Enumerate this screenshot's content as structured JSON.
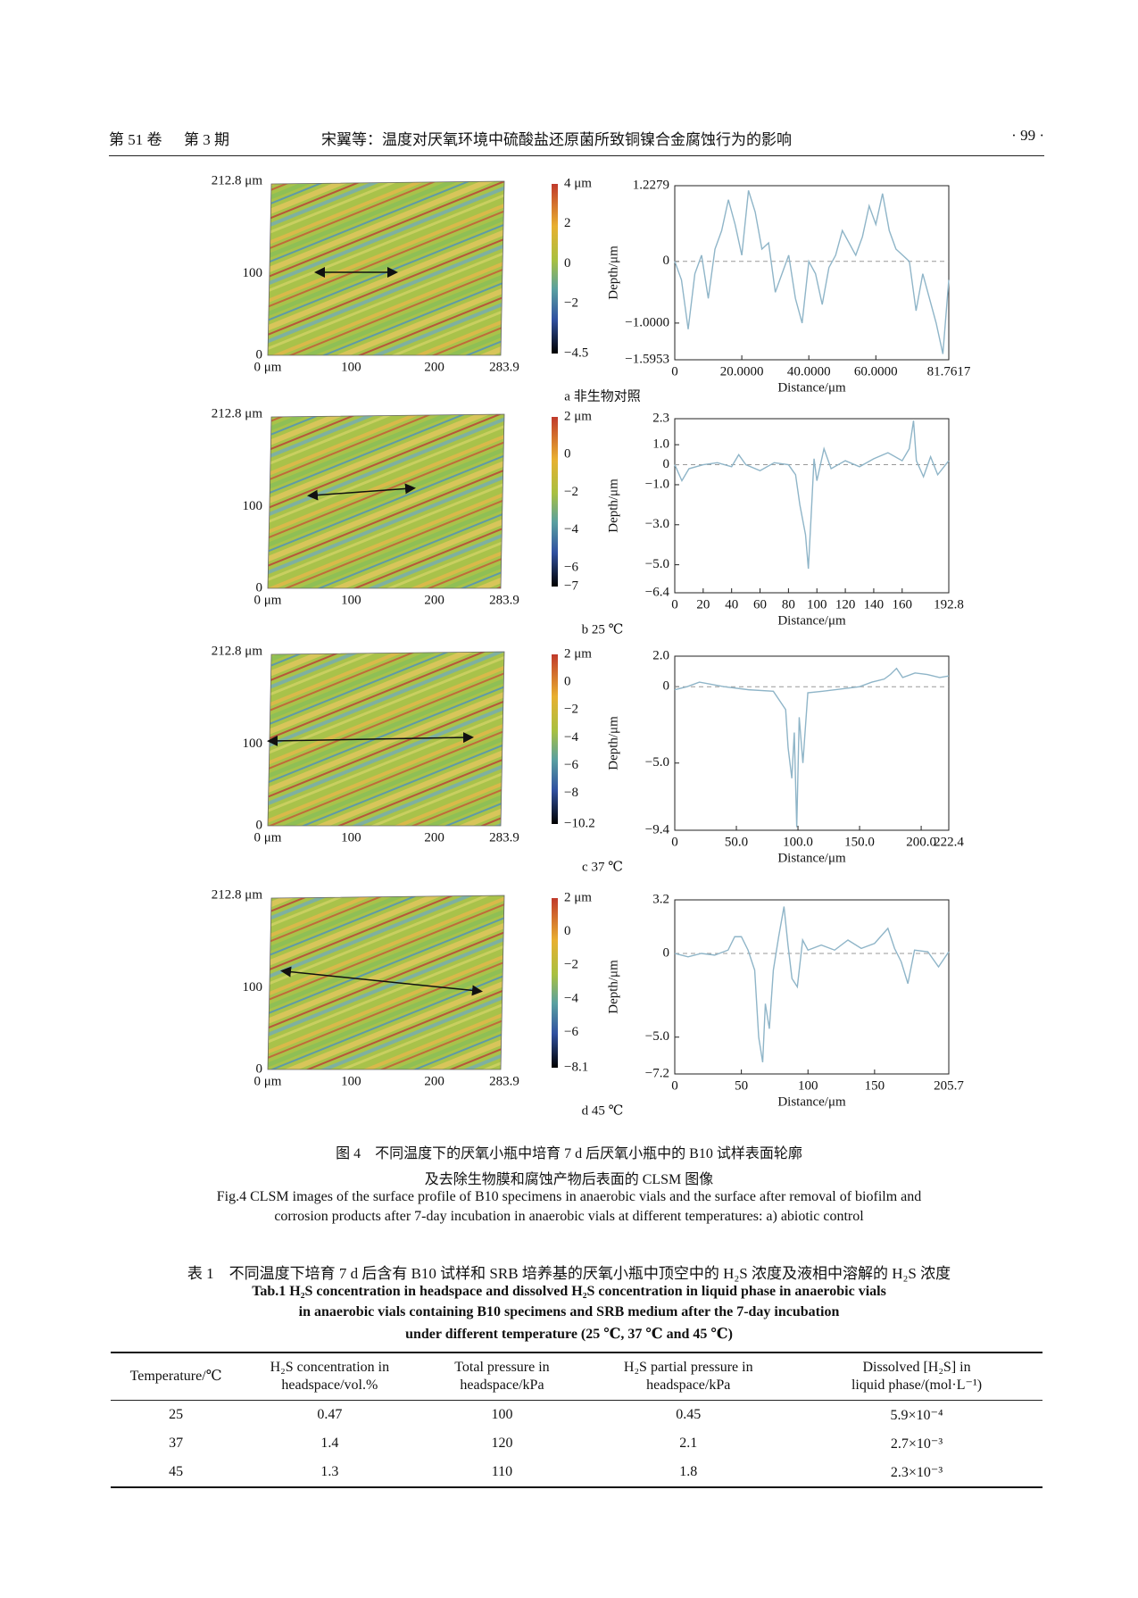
{
  "header": {
    "volume": "第 51 卷",
    "issue": "第 3 期",
    "title": "宋翼等：温度对厌氧环境中硫酸盐还原菌所致铜镍合金腐蚀行为的影响",
    "page": "· 99 ·"
  },
  "figure": {
    "panels": [
      {
        "label": "a 非生物对照",
        "map": {
          "yticks": [
            {
              "value": 212.8,
              "label": "212.8 μm"
            },
            100,
            0
          ],
          "xticks": [
            {
              "value": 0,
              "label": "0 μm"
            },
            100,
            200,
            283.9
          ]
        },
        "colorbar": {
          "ticks": [
            {
              "value": 4,
              "label": "4 μm"
            },
            2,
            0,
            {
              "value": -2,
              "label": "−2"
            },
            {
              "value": -4.5,
              "label": "−4.5"
            }
          ]
        },
        "profile": {
          "type": "line",
          "ylabel": "Depth/μm",
          "xlabel": "Distance/μm",
          "color": "#8fb5c8",
          "xlim": [
            0,
            81.7617
          ],
          "ylim": [
            -1.5953,
            1.2279
          ],
          "xticks": [
            0,
            {
              "value": 20,
              "label": "20.0000"
            },
            {
              "value": 40,
              "label": "40.0000"
            },
            {
              "value": 60,
              "label": "60.0000"
            },
            81.7617
          ],
          "yticks": [
            1.2279,
            0,
            {
              "value": -1,
              "label": "−1.0000"
            },
            {
              "value": -1.5953,
              "label": "−1.5953"
            }
          ],
          "x": [
            0,
            2,
            4,
            6,
            8,
            10,
            12,
            14,
            16,
            18,
            20,
            22,
            24,
            26,
            28,
            30,
            32,
            34,
            36,
            38,
            40,
            42,
            44,
            46,
            48,
            50,
            52,
            54,
            56,
            58,
            60,
            62,
            64,
            66,
            68,
            70,
            72,
            74,
            76,
            78,
            80,
            81.7617
          ],
          "values": [
            0,
            -0.3,
            -1.1,
            -0.2,
            0.1,
            -0.6,
            0.2,
            0.5,
            1.0,
            0.6,
            0.1,
            1.15,
            0.8,
            0.2,
            0.3,
            -0.5,
            -0.2,
            0.1,
            -0.6,
            -1.0,
            0.0,
            -0.2,
            -0.7,
            -0.1,
            0.1,
            0.5,
            0.3,
            0.1,
            0.4,
            0.9,
            0.6,
            1.1,
            0.5,
            0.2,
            0.1,
            0.0,
            -0.8,
            -0.2,
            -0.6,
            -1.0,
            -1.5,
            -0.3
          ]
        }
      },
      {
        "label": "b 25 ℃",
        "map": {
          "yticks": [
            {
              "value": 212.8,
              "label": "212.8 μm"
            },
            100,
            0
          ],
          "xticks": [
            {
              "value": 0,
              "label": "0 μm"
            },
            100,
            200,
            283.9
          ]
        },
        "colorbar": {
          "ticks": [
            {
              "value": 2,
              "label": "2 μm"
            },
            0,
            {
              "value": -2,
              "label": "−2"
            },
            {
              "value": -4,
              "label": "−4"
            },
            {
              "value": -6,
              "label": "−6"
            },
            {
              "value": -7,
              "label": "−7"
            }
          ]
        },
        "profile": {
          "type": "line",
          "ylabel": "Depth/μm",
          "xlabel": "Distance/μm",
          "color": "#8fb5c8",
          "xlim": [
            0,
            192.8
          ],
          "ylim": [
            -6.4,
            2.3
          ],
          "xticks": [
            0,
            20,
            40,
            60,
            80,
            100,
            120,
            140,
            160,
            192.8
          ],
          "yticks": [
            2.3,
            {
              "value": 1,
              "label": "1.0"
            },
            0,
            {
              "value": -1,
              "label": "−1.0"
            },
            {
              "value": -3,
              "label": "−3.0"
            },
            {
              "value": -5,
              "label": "−5.0"
            },
            {
              "value": -6.4,
              "label": "−6.4"
            }
          ],
          "x": [
            0,
            5,
            10,
            20,
            30,
            40,
            45,
            50,
            60,
            70,
            80,
            85,
            88,
            92,
            94,
            96,
            98,
            100,
            105,
            110,
            120,
            130,
            140,
            150,
            160,
            165,
            168,
            170,
            175,
            180,
            185,
            192.8
          ],
          "values": [
            0,
            -0.8,
            -0.2,
            0,
            0.1,
            -0.1,
            0.5,
            0,
            -0.3,
            0.1,
            0,
            -0.5,
            -2,
            -3.5,
            -5.2,
            -2.5,
            0.3,
            -0.8,
            0.8,
            -0.2,
            0.2,
            -0.1,
            0.3,
            0.6,
            0.2,
            0.8,
            2.2,
            0.2,
            -0.6,
            0.4,
            -0.5,
            0.2
          ]
        }
      },
      {
        "label": "c 37 ℃",
        "map": {
          "yticks": [
            {
              "value": 212.8,
              "label": "212.8 μm"
            },
            100,
            0
          ],
          "xticks": [
            {
              "value": 0,
              "label": "0 μm"
            },
            100,
            200,
            283.9
          ]
        },
        "colorbar": {
          "ticks": [
            {
              "value": 2,
              "label": "2 μm"
            },
            0,
            {
              "value": -2,
              "label": "−2"
            },
            {
              "value": -4,
              "label": "−4"
            },
            {
              "value": -6,
              "label": "−6"
            },
            {
              "value": -8,
              "label": "−8"
            },
            {
              "value": -10.2,
              "label": "−10.2"
            }
          ]
        },
        "profile": {
          "type": "line",
          "ylabel": "Depth/μm",
          "xlabel": "Distance/μm",
          "color": "#8fb5c8",
          "xlim": [
            0,
            222.4
          ],
          "ylim": [
            -9.4,
            2.0
          ],
          "xticks": [
            0,
            {
              "value": 50,
              "label": "50.0"
            },
            {
              "value": 100,
              "label": "100.0"
            },
            {
              "value": 150,
              "label": "150.0"
            },
            {
              "value": 200,
              "label": "200.0"
            },
            222.4
          ],
          "yticks": [
            {
              "value": 2,
              "label": "2.0"
            },
            0,
            {
              "value": -5,
              "label": "−5.0"
            },
            {
              "value": -9.4,
              "label": "−9.4"
            }
          ],
          "x": [
            0,
            10,
            20,
            40,
            60,
            80,
            90,
            92,
            95,
            97,
            99,
            101,
            104,
            108,
            120,
            140,
            150,
            160,
            170,
            175,
            180,
            185,
            195,
            205,
            215,
            222.4
          ],
          "values": [
            -0.2,
            0,
            0.3,
            0,
            -0.2,
            -0.3,
            -1.5,
            -4,
            -6,
            -3,
            -9.2,
            -2,
            -5,
            -0.4,
            -0.3,
            -0.1,
            0,
            0.3,
            0.5,
            0.8,
            1.2,
            0.6,
            0.9,
            0.8,
            0.6,
            0.7
          ]
        }
      },
      {
        "label": "d 45 ℃",
        "map": {
          "yticks": [
            {
              "value": 212.8,
              "label": "212.8 μm"
            },
            100,
            0
          ],
          "xticks": [
            {
              "value": 0,
              "label": "0 μm"
            },
            100,
            200,
            283.9
          ]
        },
        "colorbar": {
          "ticks": [
            {
              "value": 2,
              "label": "2 μm"
            },
            0,
            {
              "value": -2,
              "label": "−2"
            },
            {
              "value": -4,
              "label": "−4"
            },
            {
              "value": -6,
              "label": "−6"
            },
            {
              "value": -8.1,
              "label": "−8.1"
            }
          ]
        },
        "profile": {
          "type": "line",
          "ylabel": "Depth/μm",
          "xlabel": "Distance/μm",
          "color": "#8fb5c8",
          "xlim": [
            0,
            205.7
          ],
          "ylim": [
            -7.2,
            3.2
          ],
          "xticks": [
            0,
            50,
            100,
            150,
            205.7
          ],
          "yticks": [
            3.2,
            0,
            {
              "value": -5,
              "label": "−5.0"
            },
            {
              "value": -7.2,
              "label": "−7.2"
            }
          ],
          "x": [
            0,
            10,
            20,
            30,
            40,
            45,
            50,
            55,
            60,
            63,
            66,
            68,
            71,
            74,
            78,
            82,
            85,
            88,
            92,
            96,
            100,
            110,
            120,
            130,
            140,
            150,
            160,
            165,
            170,
            175,
            180,
            190,
            198,
            205.7
          ],
          "values": [
            0,
            -0.2,
            0,
            -0.1,
            0.2,
            1.0,
            1.0,
            0.2,
            -1,
            -5,
            -6.5,
            -3,
            -4.5,
            -1,
            1,
            2.8,
            0.5,
            -1.5,
            -2,
            0.8,
            0.2,
            0.5,
            0.2,
            0.8,
            0.3,
            0.6,
            1.5,
            0.3,
            -0.5,
            -1.8,
            0.2,
            0.1,
            -0.8,
            0.1
          ]
        }
      }
    ],
    "caption_zh": [
      "图 4　不同温度下的厌氧小瓶中培育 7 d 后厌氧小瓶中的 B10 试样表面轮廓",
      "及去除生物膜和腐蚀产物后表面的 CLSM 图像"
    ],
    "caption_en": [
      "Fig.4 CLSM images of the surface profile of B10 specimens in anaerobic vials and the surface after removal of biofilm and",
      "corrosion products after 7-day incubation in anaerobic vials at different temperatures: a) abiotic control"
    ]
  },
  "table": {
    "caption_zh": "表 1　不同温度下培育 7 d 后含有 B10 试样和 SRB 培养基的厌氧小瓶中顶空中的 H₂S 浓度及液相中溶解的 H₂S 浓度",
    "caption_en": [
      "Tab.1 H₂S concentration in headspace and dissolved H₂S concentration in liquid phase in anaerobic vials",
      "in anaerobic vials containing B10 specimens and SRB medium after the 7-day incubation",
      "under different temperature (25 ℃, 37 ℃ and 45 ℃)"
    ],
    "columns": [
      "Temperature/℃",
      "H₂S concentration in\nheadspace/vol.%",
      "Total pressure in\nheadspace/kPa",
      "H₂S partial pressure in\nheadspace/kPa",
      "Dissolved [H₂S] in\nliquid phase/(mol·L⁻¹)"
    ],
    "rows": [
      [
        "25",
        "0.47",
        "100",
        "0.45",
        "5.9×10⁻⁴"
      ],
      [
        "37",
        "1.4",
        "120",
        "2.1",
        "2.7×10⁻³"
      ],
      [
        "45",
        "1.3",
        "110",
        "1.8",
        "2.3×10⁻³"
      ]
    ]
  }
}
